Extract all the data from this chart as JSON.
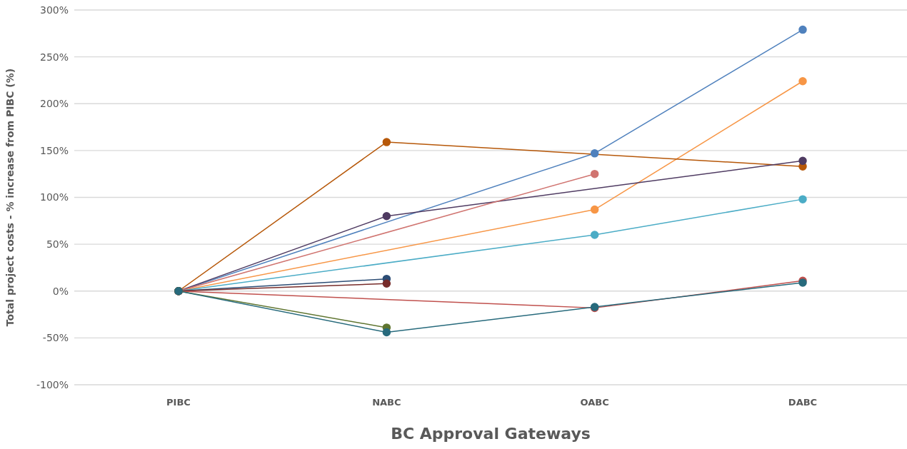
{
  "chart_data": {
    "type": "line",
    "xlabel": "BC Approval Gateways",
    "ylabel": "Total project costs - % increase from PIBC (%)",
    "categories": [
      "PIBC",
      "NABC",
      "OABC",
      "DABC"
    ],
    "series": [
      {
        "color": "#4f81bd",
        "values": [
          0,
          null,
          147,
          279
        ]
      },
      {
        "color": "#f79646",
        "values": [
          0,
          null,
          87,
          224
        ]
      },
      {
        "color": "#b65708",
        "values": [
          0,
          159,
          null,
          133
        ]
      },
      {
        "color": "#4f3b62",
        "values": [
          0,
          80,
          null,
          139
        ]
      },
      {
        "color": "#d07470",
        "values": [
          0,
          null,
          125,
          null
        ]
      },
      {
        "color": "#4bacc6",
        "values": [
          0,
          null,
          60,
          98
        ]
      },
      {
        "color": "#2c4d75",
        "values": [
          0,
          13,
          null,
          null
        ]
      },
      {
        "color": "#772c2a",
        "values": [
          0,
          8,
          null,
          null
        ]
      },
      {
        "color": "#c0504d",
        "values": [
          0,
          null,
          -18,
          11
        ]
      },
      {
        "color": "#5f7530",
        "values": [
          0,
          -39,
          null,
          null
        ]
      },
      {
        "color": "#276a7c",
        "values": [
          0,
          -44,
          -17,
          9
        ]
      }
    ],
    "ylim": [
      -100,
      300
    ],
    "yticks": [
      {
        "value": -100,
        "label": "-100%"
      },
      {
        "value": -50,
        "label": "-50%"
      },
      {
        "value": 0,
        "label": "0%"
      },
      {
        "value": 50,
        "label": "50%"
      },
      {
        "value": 100,
        "label": "100%"
      },
      {
        "value": 150,
        "label": "150%"
      },
      {
        "value": 200,
        "label": "200%"
      },
      {
        "value": 250,
        "label": "250%"
      },
      {
        "value": 300,
        "label": "300%"
      }
    ],
    "grid": "y",
    "marker": "circle",
    "line_style": "solid",
    "legend": false
  }
}
